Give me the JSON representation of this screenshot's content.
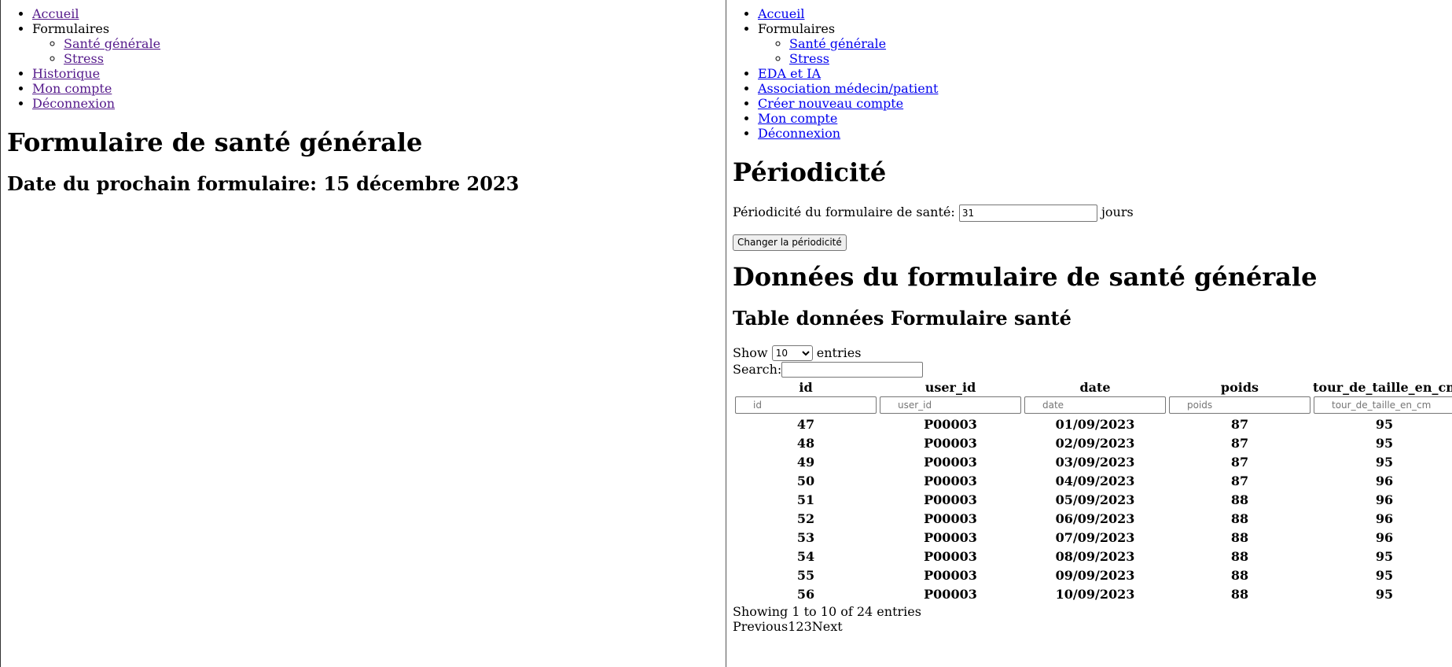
{
  "left": {
    "nav": {
      "accueil": "Accueil",
      "formulaires": "Formulaires",
      "sante_generale": "Santé générale",
      "stress": "Stress",
      "historique": "Historique",
      "mon_compte": "Mon compte",
      "deconnexion": "Déconnexion"
    },
    "title": "Formulaire de santé générale",
    "next_form_date": "Date du prochain formulaire: 15 décembre 2023"
  },
  "right": {
    "nav": {
      "accueil": "Accueil",
      "formulaires": "Formulaires",
      "sante_generale": "Santé générale",
      "stress": "Stress",
      "eda_ia": "EDA et IA",
      "association": "Association médecin/patient",
      "creer_compte": "Créer nouveau compte",
      "mon_compte": "Mon compte",
      "deconnexion": "Déconnexion"
    },
    "periodicity": {
      "title": "Périodicité",
      "label": "Périodicité du formulaire de santé:",
      "value": "31",
      "unit": "jours",
      "button": "Changer la périodicité"
    },
    "data_title": "Données du formulaire de santé générale",
    "table_title": "Table données Formulaire santé",
    "table": {
      "show_label": "Show",
      "entries_label": "entries",
      "page_size": "10",
      "search_label": "Search:",
      "columns": [
        "id",
        "user_id",
        "date",
        "poids",
        "tour_de_taille_en_cm"
      ],
      "rows": [
        [
          "47",
          "P00003",
          "01/09/2023",
          "87",
          "95"
        ],
        [
          "48",
          "P00003",
          "02/09/2023",
          "87",
          "95"
        ],
        [
          "49",
          "P00003",
          "03/09/2023",
          "87",
          "95"
        ],
        [
          "50",
          "P00003",
          "04/09/2023",
          "87",
          "96"
        ],
        [
          "51",
          "P00003",
          "05/09/2023",
          "88",
          "96"
        ],
        [
          "52",
          "P00003",
          "06/09/2023",
          "88",
          "96"
        ],
        [
          "53",
          "P00003",
          "07/09/2023",
          "88",
          "96"
        ],
        [
          "54",
          "P00003",
          "08/09/2023",
          "88",
          "95"
        ],
        [
          "55",
          "P00003",
          "09/09/2023",
          "88",
          "95"
        ],
        [
          "56",
          "P00003",
          "10/09/2023",
          "88",
          "95"
        ]
      ],
      "info": "Showing 1 to 10 of 24 entries",
      "pager": [
        "Previous",
        "1",
        "2",
        "3",
        "Next"
      ]
    }
  }
}
